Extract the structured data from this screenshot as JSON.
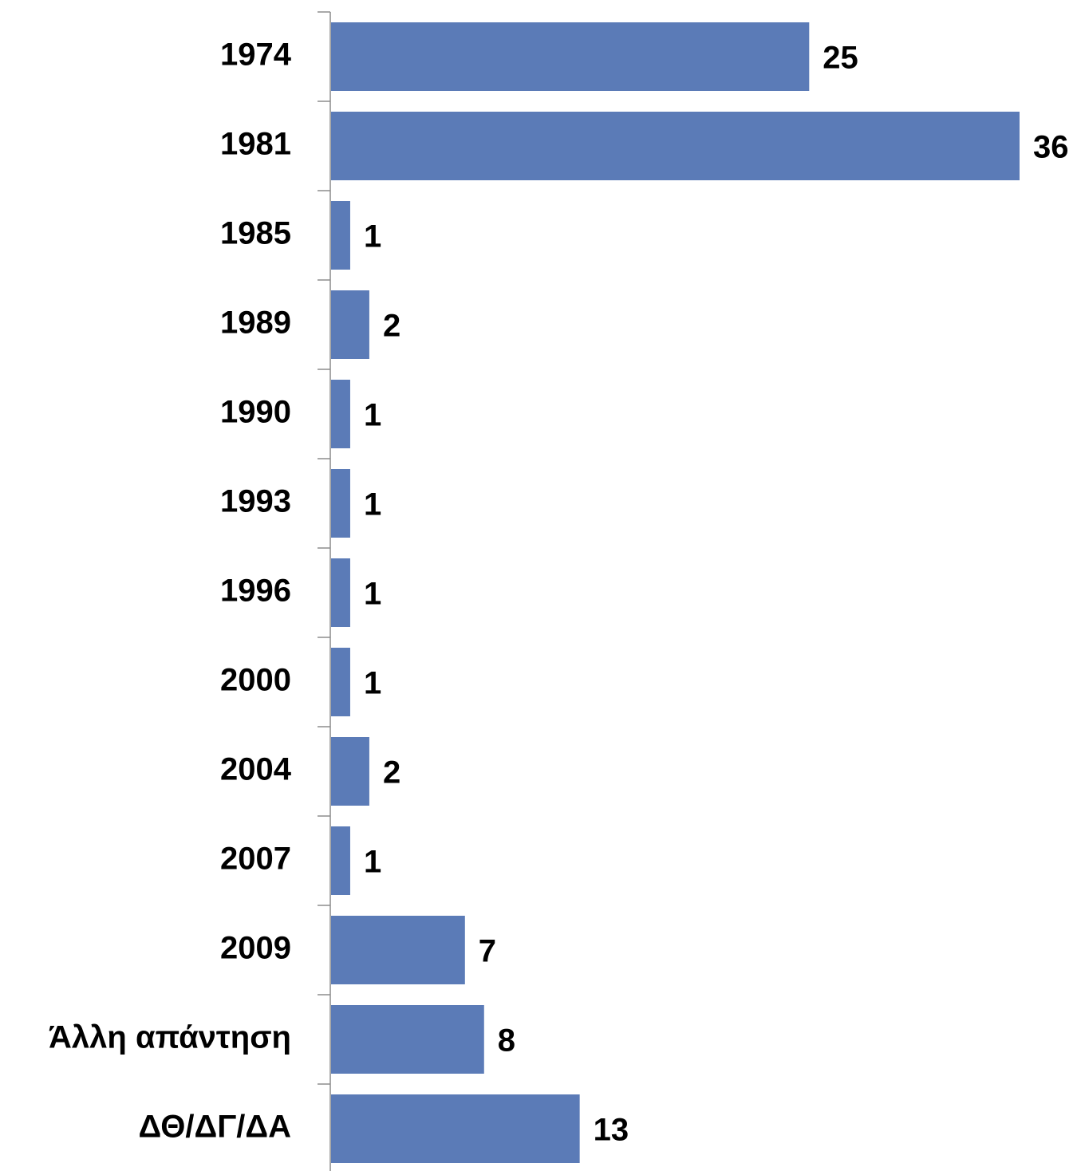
{
  "chart_data": {
    "type": "bar",
    "orientation": "horizontal",
    "categories": [
      "1974",
      "1981",
      "1985",
      "1989",
      "1990",
      "1993",
      "1996",
      "2000",
      "2004",
      "2007",
      "2009",
      "Άλλη απάντηση",
      "ΔΘ/ΔΓ/ΔΑ"
    ],
    "values": [
      25,
      36,
      1,
      2,
      1,
      1,
      1,
      1,
      2,
      1,
      7,
      8,
      13
    ],
    "color": "#5b7bb7",
    "xlim": [
      0,
      36
    ]
  }
}
